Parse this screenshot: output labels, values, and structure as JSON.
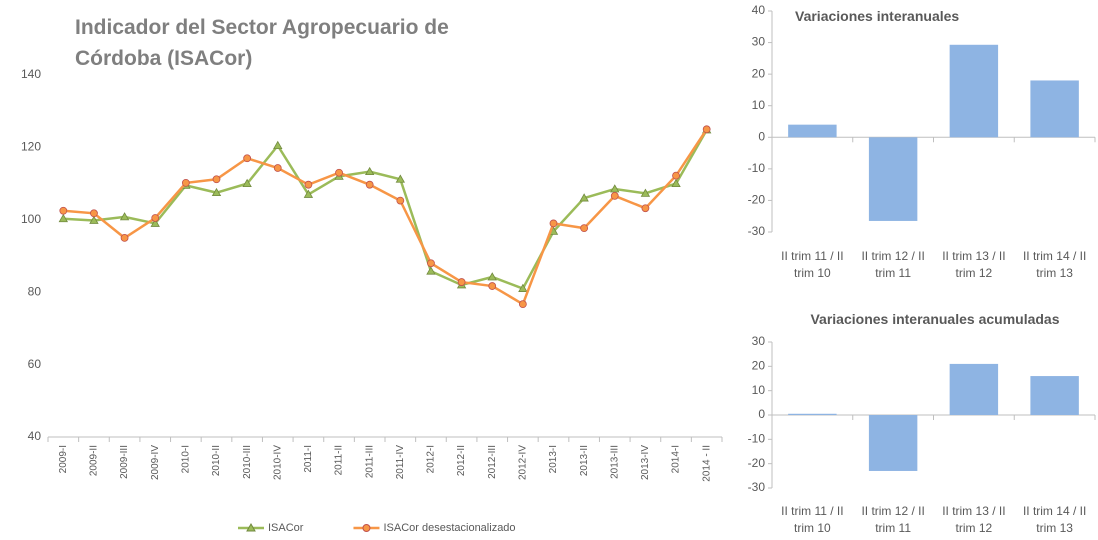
{
  "chart_data": [
    {
      "type": "line",
      "title": "Indicador del Sector Agropecuario de Córdoba (ISACor)",
      "categories": [
        "2009-I",
        "2009-II",
        "2009-III",
        "2009-IV",
        "2010-I",
        "2010-II",
        "2010-III",
        "2010-IV",
        "2011-I",
        "2011-II",
        "2011-III",
        "2011-IV",
        "2012-I",
        "2012-II",
        "2012-III",
        "2012-IV",
        "2013-I",
        "2013-II",
        "2013-III",
        "2013-IV",
        "2014-I",
        "2014 - II"
      ],
      "series": [
        {
          "name": "ISACor",
          "color": "#9bbb59",
          "marker": "triangle",
          "values": [
            100.3,
            99.8,
            100.8,
            99,
            109.5,
            107.5,
            110,
            120.5,
            107,
            112,
            113.3,
            111.2,
            85.8,
            82,
            84.2,
            81,
            96.8,
            106,
            108.5,
            107.3,
            110,
            124.8
          ]
        },
        {
          "name": "ISACor desestacionalizado",
          "color": "#f79646",
          "marker": "circle",
          "values": [
            102.5,
            101.8,
            95,
            100.5,
            110.2,
            111.2,
            117,
            114.3,
            109.7,
            113,
            109.7,
            105.3,
            88,
            82.8,
            81.7,
            76.7,
            99,
            97.7,
            106.6,
            103.2,
            112.2,
            125
          ]
        }
      ],
      "ylim": [
        40,
        140
      ],
      "yticks": [
        40,
        60,
        80,
        100,
        120,
        140
      ],
      "grid": false,
      "legend": "bottom"
    },
    {
      "type": "bar",
      "title": "Variaciones interanuales",
      "categories": [
        "II trim 11 / II trim 10",
        "II trim 12 / II trim 11",
        "II trim 13 / II trim 12",
        "II trim 14 / II trim 13"
      ],
      "values": [
        4,
        -26.5,
        29.3,
        18
      ],
      "color": "#8eb4e3",
      "ylim": [
        -30,
        40
      ],
      "yticks": [
        -30,
        -20,
        -10,
        0,
        10,
        20,
        30,
        40
      ],
      "grid": false
    },
    {
      "type": "bar",
      "title": "Variaciones interanuales acumuladas",
      "categories": [
        "II trim 11 / II trim 10",
        "II trim 12 / II trim 11",
        "II trim 13 / II trim 12",
        "II trim 14 / II trim 13"
      ],
      "values": [
        0.5,
        -23,
        21,
        16
      ],
      "color": "#8eb4e3",
      "ylim": [
        -30,
        30
      ],
      "yticks": [
        -30,
        -20,
        -10,
        0,
        10,
        20,
        30
      ],
      "grid": false
    }
  ]
}
